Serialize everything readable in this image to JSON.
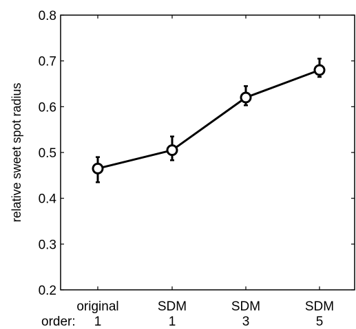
{
  "chart_data": {
    "type": "line",
    "categories": [
      "original",
      "SDM",
      "SDM",
      "SDM"
    ],
    "orders": [
      "1",
      "1",
      "3",
      "5"
    ],
    "order_label": "order:",
    "values": [
      0.465,
      0.505,
      0.62,
      0.68
    ],
    "error_low": [
      0.435,
      0.483,
      0.603,
      0.665
    ],
    "error_high": [
      0.49,
      0.535,
      0.645,
      0.705
    ],
    "ylabel": "relative sweet spot radius",
    "xlabel": "",
    "ylim": [
      0.2,
      0.8
    ],
    "yticks": [
      0.2,
      0.3,
      0.4,
      0.5,
      0.6,
      0.7,
      0.8
    ],
    "ytick_labels": [
      "0.2",
      "0.3",
      "0.4",
      "0.5",
      "0.6",
      "0.7",
      "0.8"
    ],
    "grid": false,
    "line_color": "#000000",
    "marker_fill": "#ffffff"
  }
}
